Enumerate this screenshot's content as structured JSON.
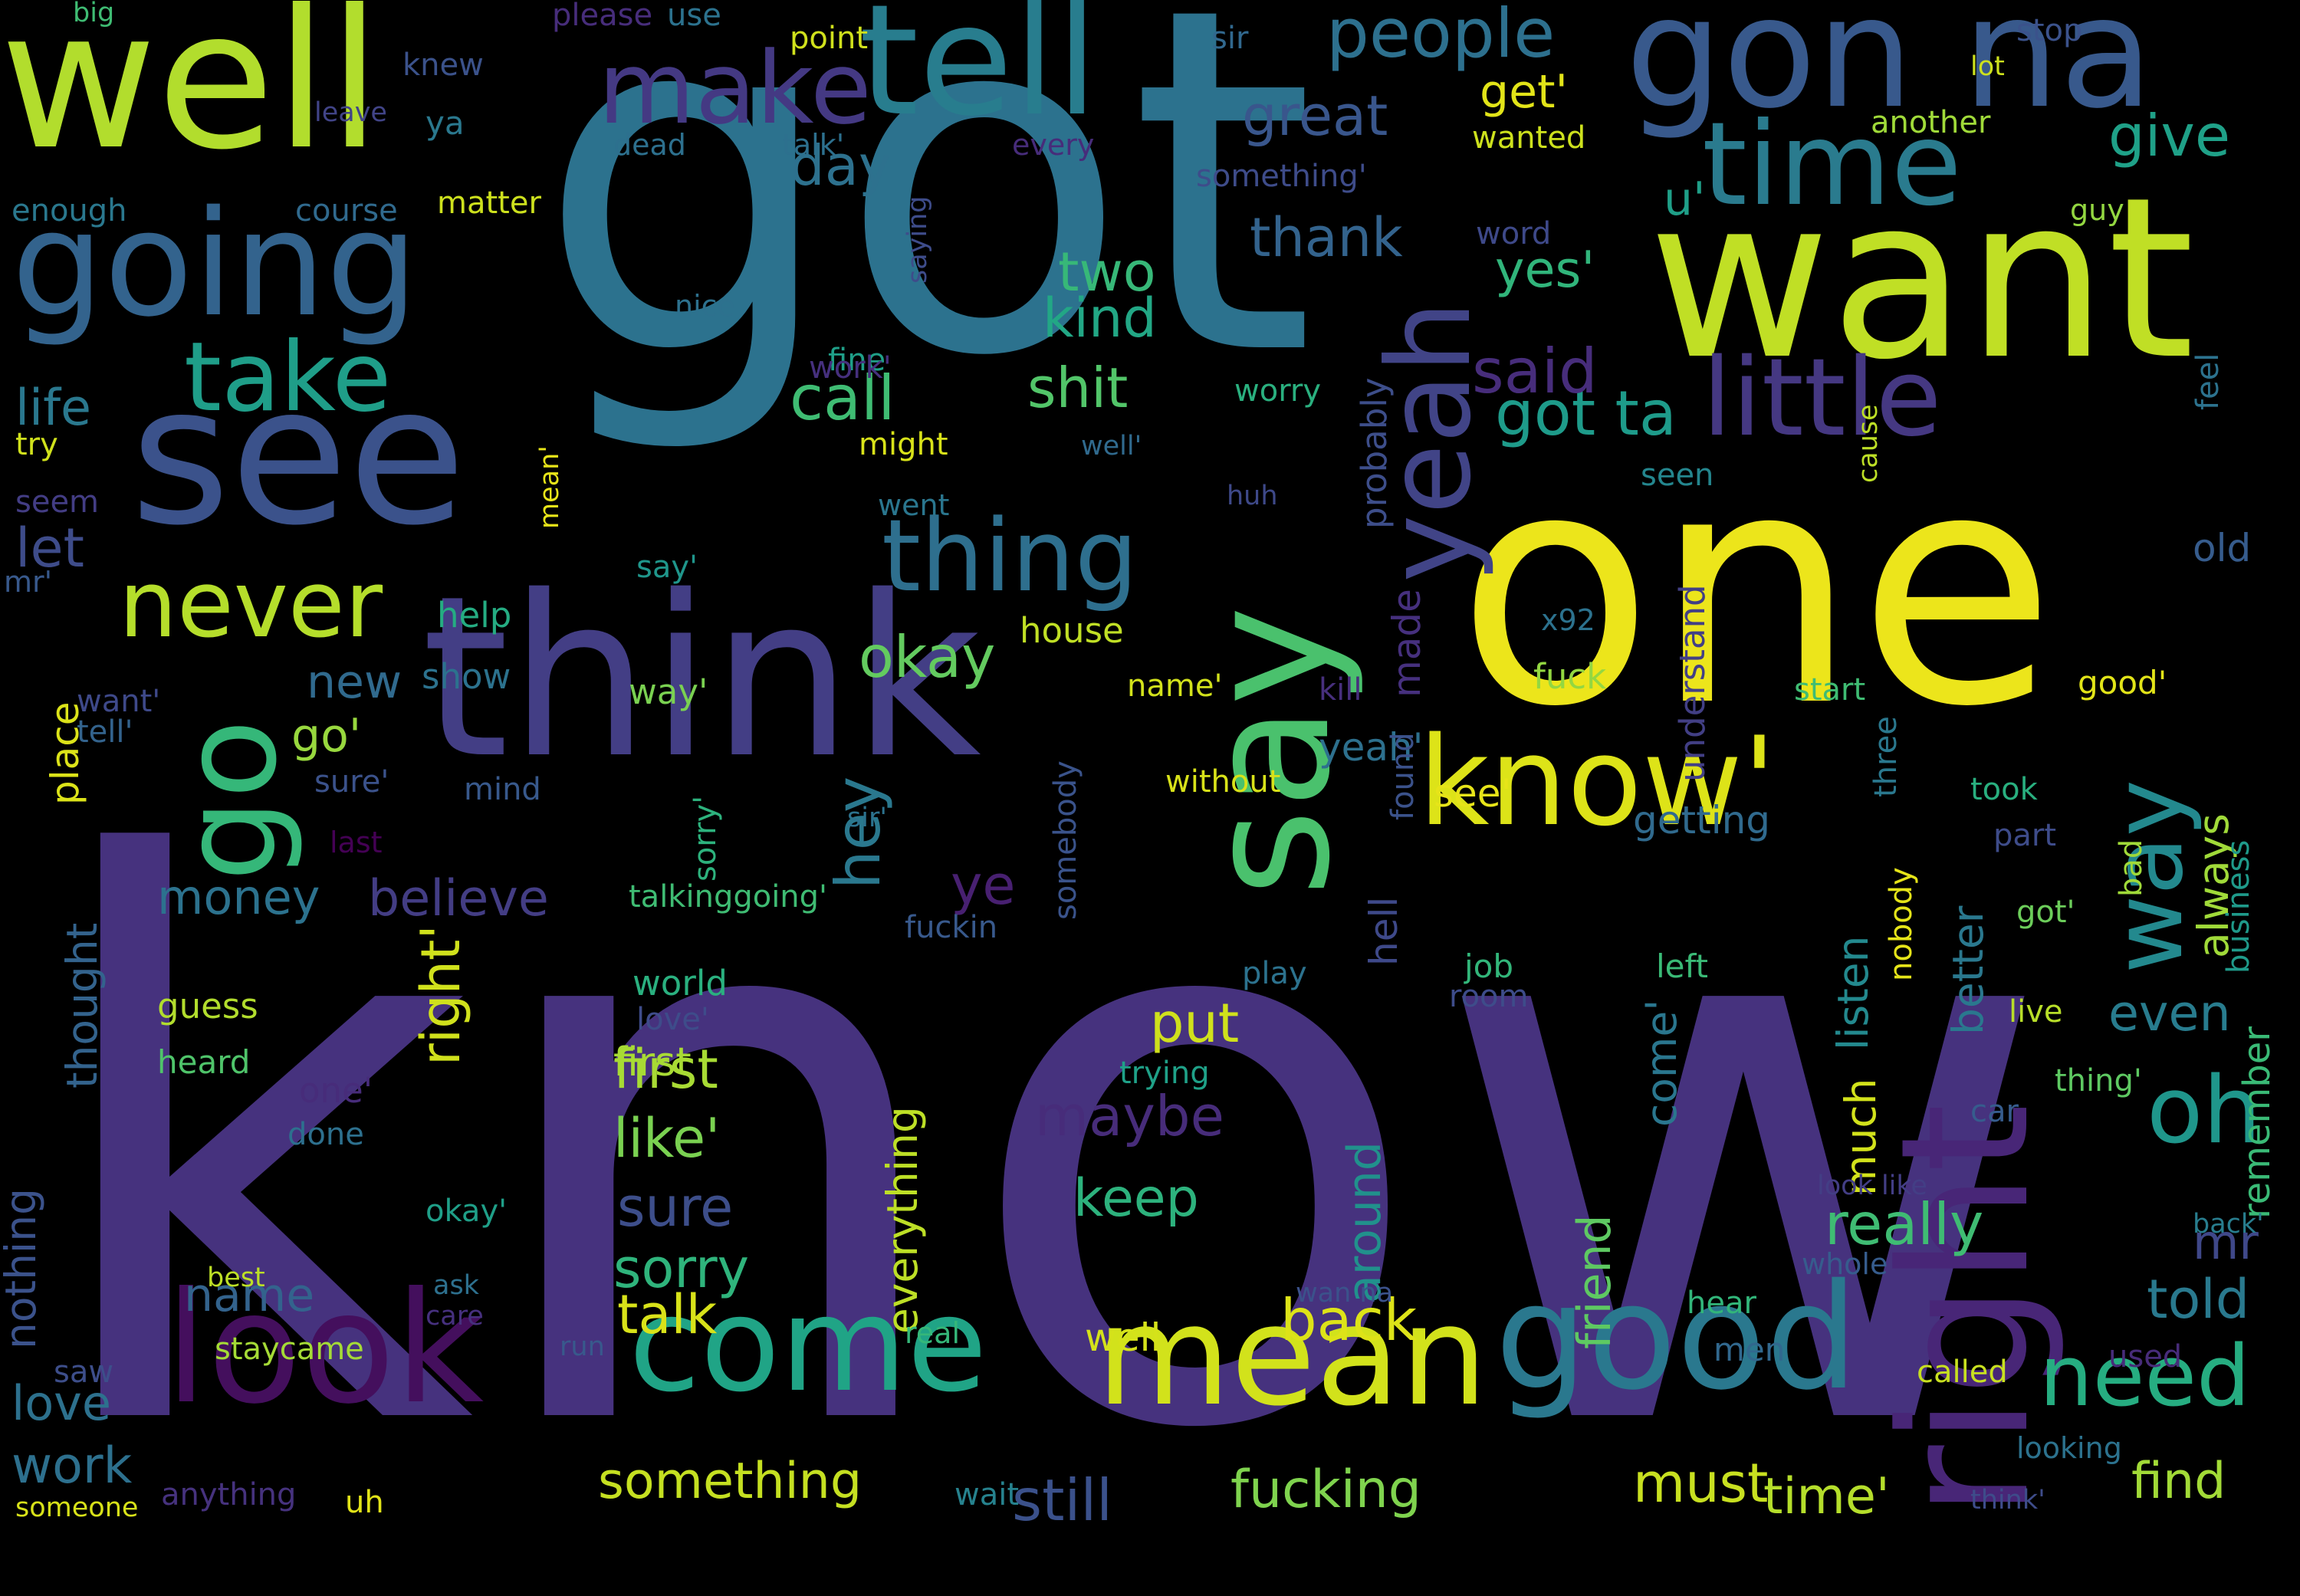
{
  "background": "#000000",
  "colormap": "viridis",
  "words": [
    {
      "text": "know",
      "color": "#46327e"
    },
    {
      "text": "got",
      "color": "#2c728e"
    },
    {
      "text": "one",
      "color": "#ece51b"
    },
    {
      "text": "think",
      "color": "#433e85"
    },
    {
      "text": "want",
      "color": "#c0df25"
    },
    {
      "text": "well",
      "color": "#b2dd2d"
    },
    {
      "text": "see",
      "color": "#3b528b"
    },
    {
      "text": "right",
      "color": "#482677"
    },
    {
      "text": "gon na",
      "color": "#38598c"
    },
    {
      "text": "tell",
      "color": "#287d8e"
    },
    {
      "text": "say",
      "color": "#4ac16d"
    },
    {
      "text": "going",
      "color": "#33638d"
    },
    {
      "text": "good",
      "color": "#2a788e"
    },
    {
      "text": "look",
      "color": "#440f5d"
    },
    {
      "text": "mean",
      "color": "#d2e21b"
    },
    {
      "text": "come",
      "color": "#20a486"
    },
    {
      "text": "go",
      "color": "#35b779"
    },
    {
      "text": "know'",
      "color": "#dde318"
    },
    {
      "text": "time",
      "color": "#2a7b8e"
    },
    {
      "text": "little",
      "color": "#453882"
    },
    {
      "text": "make",
      "color": "#443983"
    },
    {
      "text": "thing",
      "color": "#2e6f8e"
    },
    {
      "text": "take",
      "color": "#1f9e89"
    },
    {
      "text": "never",
      "color": "#b5de2b"
    },
    {
      "text": "way",
      "color": "#23898e"
    },
    {
      "text": "people",
      "color": "#2d708e"
    },
    {
      "text": "yeah",
      "color": "#414487"
    },
    {
      "text": "oh",
      "color": "#1f968b"
    },
    {
      "text": "need",
      "color": "#26ad81"
    },
    {
      "text": "okay",
      "color": "#63cb5f"
    },
    {
      "text": "shit",
      "color": "#52c569"
    },
    {
      "text": "kind",
      "color": "#22a785"
    },
    {
      "text": "two",
      "color": "#37b878"
    },
    {
      "text": "call",
      "color": "#3fbc73"
    },
    {
      "text": "got ta",
      "color": "#1e9b8a"
    },
    {
      "text": "said",
      "color": "#472d7b"
    },
    {
      "text": "day",
      "color": "#2d718e"
    },
    {
      "text": "great",
      "color": "#39568c"
    },
    {
      "text": "thank",
      "color": "#33638d"
    },
    {
      "text": "give",
      "color": "#1fa188"
    },
    {
      "text": "u'",
      "color": "#1f9f88"
    },
    {
      "text": "yes'",
      "color": "#31b57b"
    },
    {
      "text": "get'",
      "color": "#e2e418"
    },
    {
      "text": "first",
      "color": "#a8db34"
    },
    {
      "text": "like'",
      "color": "#7ad151"
    },
    {
      "text": "sure",
      "color": "#3d4e8a"
    },
    {
      "text": "sorry",
      "color": "#2fb47c"
    },
    {
      "text": "talk",
      "color": "#d8e219"
    },
    {
      "text": "back",
      "color": "#dde318"
    },
    {
      "text": "put",
      "color": "#d0e11c"
    },
    {
      "text": "maybe",
      "color": "#472c7a"
    },
    {
      "text": "keep",
      "color": "#2db27d"
    },
    {
      "text": "hey",
      "color": "#2a788e"
    },
    {
      "text": "ye",
      "color": "#482071"
    },
    {
      "text": "believe",
      "color": "#433d84"
    },
    {
      "text": "money",
      "color": "#2c728e"
    },
    {
      "text": "new",
      "color": "#306a8e"
    },
    {
      "text": "go'",
      "color": "#98d83e"
    },
    {
      "text": "let",
      "color": "#3e4c8a"
    },
    {
      "text": "life",
      "color": "#2a788e"
    },
    {
      "text": "really",
      "color": "#3fbc73"
    },
    {
      "text": "told",
      "color": "#29798e"
    },
    {
      "text": "even",
      "color": "#287c8e"
    },
    {
      "text": "mr",
      "color": "#3f4889"
    },
    {
      "text": "must",
      "color": "#c8e020"
    },
    {
      "text": "find",
      "color": "#a2da37"
    },
    {
      "text": "still",
      "color": "#3b518b"
    },
    {
      "text": "fucking",
      "color": "#7fd34e"
    },
    {
      "text": "something",
      "color": "#c5e021"
    },
    {
      "text": "time'",
      "color": "#b5de2b"
    },
    {
      "text": "name",
      "color": "#33638d"
    },
    {
      "text": "work",
      "color": "#2d708e"
    },
    {
      "text": "love",
      "color": "#2d718e"
    },
    {
      "text": "right'",
      "color": "#d0e11c"
    },
    {
      "text": "friend",
      "color": "#5ec962"
    },
    {
      "text": "around",
      "color": "#21918c"
    },
    {
      "text": "everything",
      "color": "#bddf26"
    },
    {
      "text": "much",
      "color": "#d2e21b"
    },
    {
      "text": "listen",
      "color": "#23898e"
    },
    {
      "text": "better",
      "color": "#2a788e"
    },
    {
      "text": "always",
      "color": "#a0da39"
    },
    {
      "text": "come'",
      "color": "#2a768e"
    },
    {
      "text": "nothing",
      "color": "#3b528b"
    },
    {
      "text": "thought",
      "color": "#33638d"
    },
    {
      "text": "place",
      "color": "#dce319"
    },
    {
      "text": "well",
      "color": "#d5e21a"
    },
    {
      "text": "made",
      "color": "#46307e"
    },
    {
      "text": "hell",
      "color": "#3e4989"
    },
    {
      "text": "yeah'",
      "color": "#2d708e"
    },
    {
      "text": "see'",
      "color": "#e7e419"
    },
    {
      "text": "getting",
      "color": "#306a8e"
    },
    {
      "text": "remember",
      "color": "#3aba76"
    },
    {
      "text": "old",
      "color": "#365c8d"
    },
    {
      "text": "fuck",
      "color": "#93d741"
    },
    {
      "text": "probably",
      "color": "#3d4e8a"
    },
    {
      "text": "understand",
      "color": "#423f85"
    },
    {
      "text": "job",
      "color": "#32b67a"
    },
    {
      "text": "left",
      "color": "#3aba76"
    },
    {
      "text": "play",
      "color": "#2c728e"
    },
    {
      "text": "room",
      "color": "#3e4c8a"
    },
    {
      "text": "world",
      "color": "#2ab07f"
    },
    {
      "text": "guess",
      "color": "#b2dd2d"
    },
    {
      "text": "heard",
      "color": "#4fc46a"
    },
    {
      "text": "first",
      "color": "#a8db34"
    },
    {
      "text": "talkinggoing'",
      "color": "#3fbc73"
    },
    {
      "text": "fuckin",
      "color": "#38598c"
    },
    {
      "text": "without",
      "color": "#d8e219"
    },
    {
      "text": "somebody",
      "color": "#3a538b"
    },
    {
      "text": "sorry'",
      "color": "#2db27d"
    },
    {
      "text": "say'",
      "color": "#1f968b"
    },
    {
      "text": "way'",
      "color": "#7ad151"
    },
    {
      "text": "house",
      "color": "#c0df25"
    },
    {
      "text": "name'",
      "color": "#d2e21b"
    },
    {
      "text": "kill",
      "color": "#472f7d"
    },
    {
      "text": "start",
      "color": "#3fbc73"
    },
    {
      "text": "good'",
      "color": "#e2e418"
    },
    {
      "text": "took",
      "color": "#29af7f"
    },
    {
      "text": "part",
      "color": "#3e4c8a"
    },
    {
      "text": "got'",
      "color": "#6ccd5a"
    },
    {
      "text": "bad",
      "color": "#a0da39"
    },
    {
      "text": "business",
      "color": "#1f9a8a"
    },
    {
      "text": "live",
      "color": "#b8de29"
    },
    {
      "text": "thing'",
      "color": "#5ec962"
    },
    {
      "text": "car",
      "color": "#365c8d"
    },
    {
      "text": "nobody",
      "color": "#e5e419"
    },
    {
      "text": "three",
      "color": "#2a788e"
    },
    {
      "text": "found",
      "color": "#3b528b"
    },
    {
      "text": "show",
      "color": "#2c728e"
    },
    {
      "text": "help",
      "color": "#25ac82"
    },
    {
      "text": "want'",
      "color": "#3e4989"
    },
    {
      "text": "tell'",
      "color": "#33638d"
    },
    {
      "text": "mind",
      "color": "#38598c"
    },
    {
      "text": "sure'",
      "color": "#3b528b"
    },
    {
      "text": "last",
      "color": "#440154"
    },
    {
      "text": "one'",
      "color": "#472c7a"
    },
    {
      "text": "trying",
      "color": "#1fa188"
    },
    {
      "text": "love'",
      "color": "#3e4c8a"
    },
    {
      "text": "done",
      "color": "#2d708e"
    },
    {
      "text": "okay'",
      "color": "#1f9f88"
    },
    {
      "text": "ask",
      "color": "#2d708e"
    },
    {
      "text": "care",
      "color": "#46307e"
    },
    {
      "text": "sir'",
      "color": "#2c728e"
    },
    {
      "text": "staycame",
      "color": "#a5db36"
    },
    {
      "text": "run",
      "color": "#38598c"
    },
    {
      "text": "best",
      "color": "#bddf26"
    },
    {
      "text": "saw",
      "color": "#3d4e8a"
    },
    {
      "text": "someone",
      "color": "#d8e219"
    },
    {
      "text": "anything",
      "color": "#46327e"
    },
    {
      "text": "uh",
      "color": "#e2e418"
    },
    {
      "text": "wait",
      "color": "#26828e"
    },
    {
      "text": "wan na",
      "color": "#3b528b"
    },
    {
      "text": "real",
      "color": "#35b779"
    },
    {
      "text": "hear",
      "color": "#32b67a"
    },
    {
      "text": "men",
      "color": "#31688e"
    },
    {
      "text": "whole",
      "color": "#365c8d"
    },
    {
      "text": "called",
      "color": "#c8e020"
    },
    {
      "text": "used",
      "color": "#472c7a"
    },
    {
      "text": "back'",
      "color": "#287d8e"
    },
    {
      "text": "look like",
      "color": "#433e85"
    },
    {
      "text": "looking",
      "color": "#2c728e"
    },
    {
      "text": "think'",
      "color": "#3e4c8a"
    },
    {
      "text": "big",
      "color": "#3fbc73"
    },
    {
      "text": "please",
      "color": "#472d7b"
    },
    {
      "text": "use",
      "color": "#2c728e"
    },
    {
      "text": "point",
      "color": "#d0e11c"
    },
    {
      "text": "sir",
      "color": "#31688e"
    },
    {
      "text": "stop",
      "color": "#3b528b"
    },
    {
      "text": "lot",
      "color": "#cde11d"
    },
    {
      "text": "knew",
      "color": "#3b528b"
    },
    {
      "text": "ya",
      "color": "#2a788e"
    },
    {
      "text": "leave",
      "color": "#414487"
    },
    {
      "text": "dead",
      "color": "#2d708e"
    },
    {
      "text": "talk'",
      "color": "#2d708e"
    },
    {
      "text": "every",
      "color": "#472c7a"
    },
    {
      "text": "wanted",
      "color": "#cde11d"
    },
    {
      "text": "something'",
      "color": "#3e4c8a"
    },
    {
      "text": "another",
      "color": "#a0da39"
    },
    {
      "text": "enough",
      "color": "#2a788e"
    },
    {
      "text": "course",
      "color": "#306a8e"
    },
    {
      "text": "matter",
      "color": "#cde11d"
    },
    {
      "text": "word",
      "color": "#3e4989"
    },
    {
      "text": "guy",
      "color": "#93d741"
    },
    {
      "text": "saying",
      "color": "#3e4c8a"
    },
    {
      "text": "nice",
      "color": "#2d718e"
    },
    {
      "text": "fine",
      "color": "#1f9f88"
    },
    {
      "text": "work'",
      "color": "#46307e"
    },
    {
      "text": "worry",
      "color": "#2ab07f"
    },
    {
      "text": "might",
      "color": "#d8e219"
    },
    {
      "text": "well'",
      "color": "#306a8e"
    },
    {
      "text": "feel",
      "color": "#2c728e"
    },
    {
      "text": "cause",
      "color": "#bddf26"
    },
    {
      "text": "seen",
      "color": "#24868e"
    },
    {
      "text": "try",
      "color": "#d0e11c"
    },
    {
      "text": "seem",
      "color": "#433d84"
    },
    {
      "text": "went",
      "color": "#2a768e"
    },
    {
      "text": "mean'",
      "color": "#e7e419"
    },
    {
      "text": "huh",
      "color": "#3e4989"
    },
    {
      "text": "x92",
      "color": "#2c728e"
    },
    {
      "text": "mr'",
      "color": "#38598c"
    },
    {
      "text": "night",
      "color": "#3e4989"
    }
  ]
}
